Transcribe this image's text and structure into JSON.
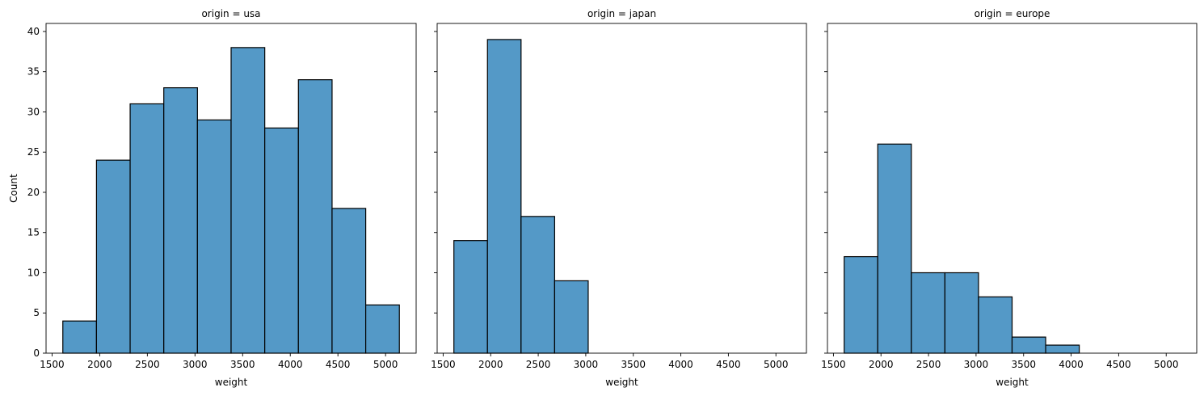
{
  "chart_data": {
    "type": "bar",
    "subtype": "histogram-facet-grid",
    "bin_edges": [
      1613,
      1966.2,
      2319.4,
      2672.6,
      3025.8,
      3379,
      3732.2,
      4085.4,
      4438.6,
      4791.8,
      5145
    ],
    "xlim": [
      1437,
      5321
    ],
    "ylim": [
      0,
      41
    ],
    "xticks": [
      1500,
      2000,
      2500,
      3000,
      3500,
      4000,
      4500,
      5000
    ],
    "yticks": [
      0,
      5,
      10,
      15,
      20,
      25,
      30,
      35,
      40
    ],
    "xlabel": "weight",
    "ylabel": "Count",
    "bar_color": "#5499c7",
    "edge_color": "#000000",
    "panels": [
      {
        "title": "origin = usa",
        "values": [
          4,
          24,
          31,
          33,
          29,
          38,
          28,
          34,
          18,
          6
        ]
      },
      {
        "title": "origin = japan",
        "values": [
          14,
          39,
          17,
          9,
          0,
          0,
          0,
          0,
          0,
          0
        ]
      },
      {
        "title": "origin = europe",
        "values": [
          12,
          26,
          10,
          10,
          7,
          2,
          1,
          0,
          0,
          0
        ]
      }
    ]
  }
}
